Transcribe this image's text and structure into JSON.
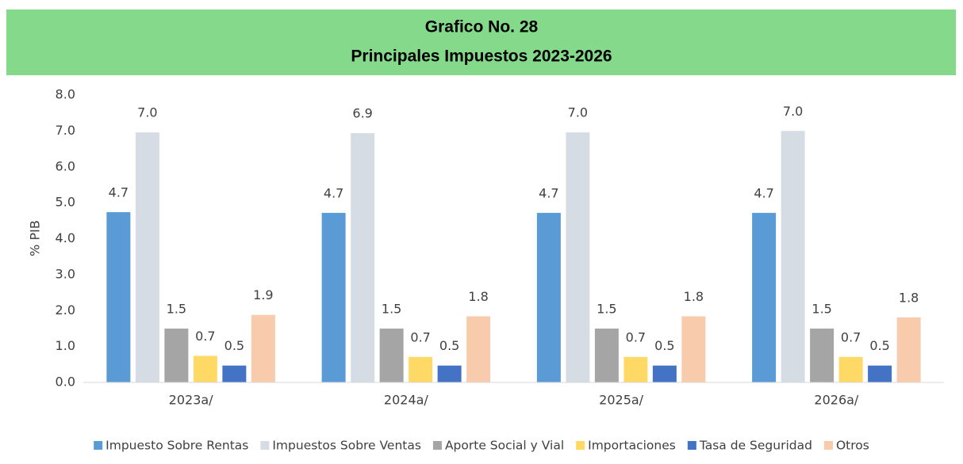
{
  "chart_data": {
    "type": "bar",
    "title": "Grafico No. 28",
    "subtitle": "Principales Impuestos 2023-2026",
    "y_label": "% PIB",
    "categories": [
      "2023a/",
      "2024a/",
      "2025a/",
      "2026a/"
    ],
    "series": [
      {
        "name": "Impuesto Sobre Rentas",
        "color": "#5b9bd5",
        "values": [
          4.74,
          4.72,
          4.72,
          4.72
        ],
        "value_labels": [
          "4.7",
          "4.7",
          "4.7",
          "4.7"
        ]
      },
      {
        "name": "Impuestos Sobre Ventas",
        "color": "#d6dce4",
        "values": [
          6.96,
          6.94,
          6.96,
          7.0
        ],
        "value_labels": [
          "7.0",
          "6.9",
          "7.0",
          "7.0"
        ]
      },
      {
        "name": "Aporte Social y Vial",
        "color": "#a5a5a5",
        "values": [
          1.5,
          1.5,
          1.5,
          1.5
        ],
        "value_labels": [
          "1.5",
          "1.5",
          "1.5",
          "1.5"
        ]
      },
      {
        "name": "Importaciones",
        "color": "#ffd966",
        "values": [
          0.74,
          0.71,
          0.71,
          0.71
        ],
        "value_labels": [
          "0.7",
          "0.7",
          "0.7",
          "0.7"
        ]
      },
      {
        "name": "Tasa de Seguridad",
        "color": "#4472c4",
        "values": [
          0.47,
          0.47,
          0.47,
          0.47
        ],
        "value_labels": [
          "0.5",
          "0.5",
          "0.5",
          "0.5"
        ]
      },
      {
        "name": "Otros",
        "color": "#f8cbad",
        "values": [
          1.88,
          1.84,
          1.84,
          1.81
        ],
        "value_labels": [
          "1.9",
          "1.8",
          "1.8",
          "1.8"
        ]
      }
    ],
    "ylim": [
      0,
      8
    ],
    "yticks": [
      {
        "value": 0,
        "label": "0.0"
      },
      {
        "value": 1,
        "label": "1.0"
      },
      {
        "value": 2,
        "label": "2.0"
      },
      {
        "value": 3,
        "label": "3.0"
      },
      {
        "value": 4,
        "label": "4.0"
      },
      {
        "value": 5,
        "label": "5.0"
      },
      {
        "value": 6,
        "label": "6.0"
      },
      {
        "value": 7,
        "label": "7.0"
      },
      {
        "value": 8,
        "label": "8.0"
      }
    ],
    "grid": false,
    "legend": "bottom",
    "header_color": "#84d98a"
  }
}
